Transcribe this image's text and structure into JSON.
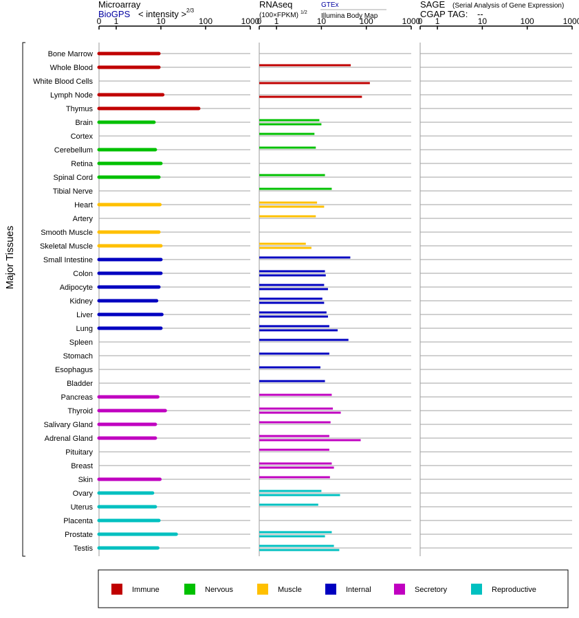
{
  "panels": {
    "microarray": {
      "title": "Microarray",
      "source": "BioGPS",
      "unit_label": "< intensity >",
      "unit_exponent": "2/3",
      "ticks": [
        "0",
        "1",
        "10",
        "100",
        "1000"
      ]
    },
    "rnaseq": {
      "title": "RNAseq",
      "unit_label": "(100×FPKM)",
      "unit_exponent": "1/2",
      "source1": "GTEx",
      "source2": "Illumina Body Map",
      "ticks": [
        "0",
        "1",
        "10",
        "100",
        "1000"
      ]
    },
    "sage": {
      "title": "SAGE",
      "subtitle": "(Serial Analysis of Gene Expression)",
      "tag_label": "CGAP TAG:",
      "tag_value": "--",
      "ticks": [
        "0",
        "1",
        "10",
        "100",
        "1000"
      ]
    }
  },
  "y_axis_title": "Major Tissues",
  "legend": [
    {
      "key": "immune",
      "label": "Immune",
      "color": "#c00000"
    },
    {
      "key": "nervous",
      "label": "Nervous",
      "color": "#00c000"
    },
    {
      "key": "muscle",
      "label": "Muscle",
      "color": "#ffc000"
    },
    {
      "key": "internal",
      "label": "Internal",
      "color": "#0000c0"
    },
    {
      "key": "secretory",
      "label": "Secretory",
      "color": "#c000c0"
    },
    {
      "key": "reproductive",
      "label": "Reproductive",
      "color": "#00c0c0"
    }
  ],
  "chart_data": {
    "type": "bar",
    "scale": "log-like (0, 1, 10, 100, 1000)",
    "xlim": [
      0,
      1000
    ],
    "tissues": [
      {
        "name": "Bone Marrow",
        "group": "immune",
        "microarray": 9,
        "gtex": null,
        "ibm": null
      },
      {
        "name": "Whole Blood",
        "group": "immune",
        "microarray": 9,
        "gtex": 45,
        "ibm": null
      },
      {
        "name": "White Blood Cells",
        "group": "immune",
        "microarray": null,
        "gtex": null,
        "ibm": 120
      },
      {
        "name": "Lymph Node",
        "group": "immune",
        "microarray": 11,
        "gtex": null,
        "ibm": 80
      },
      {
        "name": "Thymus",
        "group": "immune",
        "microarray": 70,
        "gtex": null,
        "ibm": null
      },
      {
        "name": "Brain",
        "group": "nervous",
        "microarray": 7,
        "gtex": 9,
        "ibm": 10
      },
      {
        "name": "Cortex",
        "group": "nervous",
        "microarray": null,
        "gtex": 7,
        "ibm": null
      },
      {
        "name": "Cerebellum",
        "group": "nervous",
        "microarray": 7.5,
        "gtex": 7.5,
        "ibm": null
      },
      {
        "name": "Retina",
        "group": "nervous",
        "microarray": 10,
        "gtex": null,
        "ibm": null
      },
      {
        "name": "Spinal Cord",
        "group": "nervous",
        "microarray": 9,
        "gtex": 12,
        "ibm": null
      },
      {
        "name": "Tibial Nerve",
        "group": "nervous",
        "microarray": null,
        "gtex": 17,
        "ibm": null
      },
      {
        "name": "Heart",
        "group": "muscle",
        "microarray": 9.5,
        "gtex": 8,
        "ibm": 11.5
      },
      {
        "name": "Artery",
        "group": "muscle",
        "microarray": null,
        "gtex": 7.5,
        "ibm": null
      },
      {
        "name": "Smooth Muscle",
        "group": "muscle",
        "microarray": 9,
        "gtex": null,
        "ibm": null
      },
      {
        "name": "Skeletal Muscle",
        "group": "muscle",
        "microarray": 10,
        "gtex": 4.5,
        "ibm": 6
      },
      {
        "name": "Small Intestine",
        "group": "internal",
        "microarray": 10,
        "gtex": 44,
        "ibm": null
      },
      {
        "name": "Colon",
        "group": "internal",
        "microarray": 10,
        "gtex": 12,
        "ibm": 12.5
      },
      {
        "name": "Adipocyte",
        "group": "internal",
        "microarray": 9,
        "gtex": 11.5,
        "ibm": 14
      },
      {
        "name": "Kidney",
        "group": "internal",
        "microarray": 8,
        "gtex": 10.5,
        "ibm": 11.5
      },
      {
        "name": "Liver",
        "group": "internal",
        "microarray": 10.5,
        "gtex": 13,
        "ibm": 14
      },
      {
        "name": "Lung",
        "group": "internal",
        "microarray": 10,
        "gtex": 15,
        "ibm": 23
      },
      {
        "name": "Spleen",
        "group": "internal",
        "microarray": null,
        "gtex": 40,
        "ibm": null
      },
      {
        "name": "Stomach",
        "group": "internal",
        "microarray": null,
        "gtex": 15,
        "ibm": null
      },
      {
        "name": "Esophagus",
        "group": "internal",
        "microarray": null,
        "gtex": 9.5,
        "ibm": null
      },
      {
        "name": "Bladder",
        "group": "internal",
        "microarray": null,
        "gtex": 12,
        "ibm": null
      },
      {
        "name": "Pancreas",
        "group": "secretory",
        "microarray": 8.5,
        "gtex": 17,
        "ibm": null
      },
      {
        "name": "Thyroid",
        "group": "secretory",
        "microarray": 12.5,
        "gtex": 18,
        "ibm": 27
      },
      {
        "name": "Salivary Gland",
        "group": "secretory",
        "microarray": 7.5,
        "gtex": 16,
        "ibm": null
      },
      {
        "name": "Adrenal Gland",
        "group": "secretory",
        "microarray": 7.5,
        "gtex": 15,
        "ibm": 75
      },
      {
        "name": "Pituitary",
        "group": "secretory",
        "microarray": null,
        "gtex": 15,
        "ibm": null
      },
      {
        "name": "Breast",
        "group": "secretory",
        "microarray": null,
        "gtex": 17,
        "ibm": 19
      },
      {
        "name": "Skin",
        "group": "secretory",
        "microarray": 9.5,
        "gtex": 15.5,
        "ibm": null
      },
      {
        "name": "Ovary",
        "group": "reproductive",
        "microarray": 6.5,
        "gtex": 10,
        "ibm": 26
      },
      {
        "name": "Uterus",
        "group": "reproductive",
        "microarray": 7.5,
        "gtex": 8.5,
        "ibm": null
      },
      {
        "name": "Placenta",
        "group": "reproductive",
        "microarray": 9,
        "gtex": null,
        "ibm": null
      },
      {
        "name": "Prostate",
        "group": "reproductive",
        "microarray": 22,
        "gtex": 17,
        "ibm": 12
      },
      {
        "name": "Testis",
        "group": "reproductive",
        "microarray": 8.5,
        "gtex": 19,
        "ibm": 25
      }
    ]
  }
}
